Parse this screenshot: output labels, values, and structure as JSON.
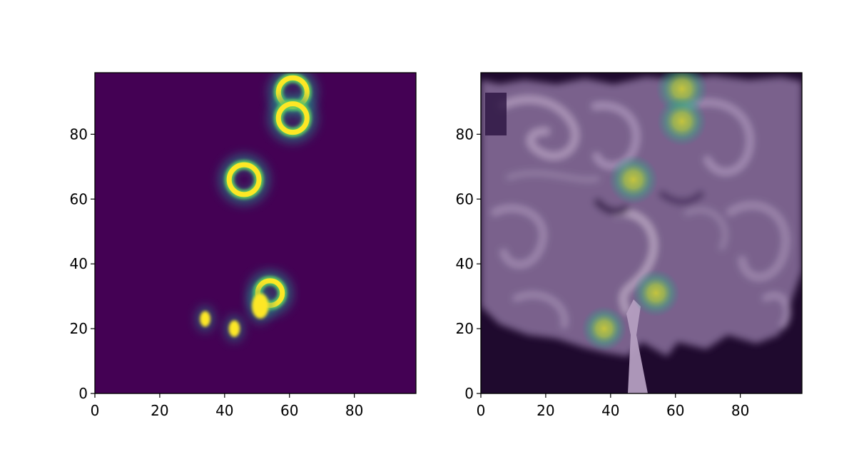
{
  "colors": {
    "background": "#ffffff",
    "axis": "#000000",
    "viridis_low": "#440154",
    "viridis_mid": "#21918c",
    "viridis_high": "#fde725",
    "smoke_dark": "#1f0a2e",
    "smoke_light": "#a98eb5"
  },
  "chart_data": [
    {
      "type": "heatmap",
      "panel": "left",
      "title": "",
      "xlabel": "",
      "ylabel": "",
      "xlim": [
        0,
        99
      ],
      "ylim": [
        0,
        99
      ],
      "origin": "lower",
      "colormap": "viridis",
      "grid": false,
      "xticks": [
        "0",
        "20",
        "40",
        "60",
        "80"
      ],
      "yticks": [
        "0",
        "20",
        "40",
        "60",
        "80"
      ],
      "background_value": 0.0,
      "features": [
        {
          "shape": "ring",
          "x": 46,
          "y": 66,
          "radius": 4.6,
          "value": 1.0
        },
        {
          "shape": "ring",
          "x": 61,
          "y": 93,
          "radius": 4.4,
          "value": 1.0
        },
        {
          "shape": "ring",
          "x": 61,
          "y": 85,
          "radius": 4.4,
          "value": 1.0
        },
        {
          "shape": "ring",
          "x": 54,
          "y": 31,
          "radius": 3.8,
          "value": 1.0
        },
        {
          "shape": "blob",
          "x": 51,
          "y": 27,
          "radius": 2.6,
          "value": 0.9
        },
        {
          "shape": "blob",
          "x": 43,
          "y": 20,
          "radius": 1.7,
          "value": 0.95
        },
        {
          "shape": "blob",
          "x": 34,
          "y": 23,
          "radius": 1.6,
          "value": 0.9
        }
      ]
    },
    {
      "type": "heatmap",
      "panel": "right",
      "title": "",
      "xlabel": "",
      "ylabel": "",
      "xlim": [
        0,
        99
      ],
      "ylim": [
        0,
        99
      ],
      "origin": "lower",
      "colormap": "viridis (overlay on smoke density)",
      "grid": false,
      "xticks": [
        "0",
        "20",
        "40",
        "60",
        "80"
      ],
      "yticks": [
        "0",
        "20",
        "40",
        "60",
        "80"
      ],
      "hotspots": [
        {
          "x": 62,
          "y": 94,
          "value": 0.9
        },
        {
          "x": 62,
          "y": 84,
          "value": 0.85
        },
        {
          "x": 47,
          "y": 66,
          "value": 0.85
        },
        {
          "x": 54,
          "y": 31,
          "value": 0.8
        },
        {
          "x": 38,
          "y": 20,
          "value": 0.75
        }
      ]
    }
  ]
}
